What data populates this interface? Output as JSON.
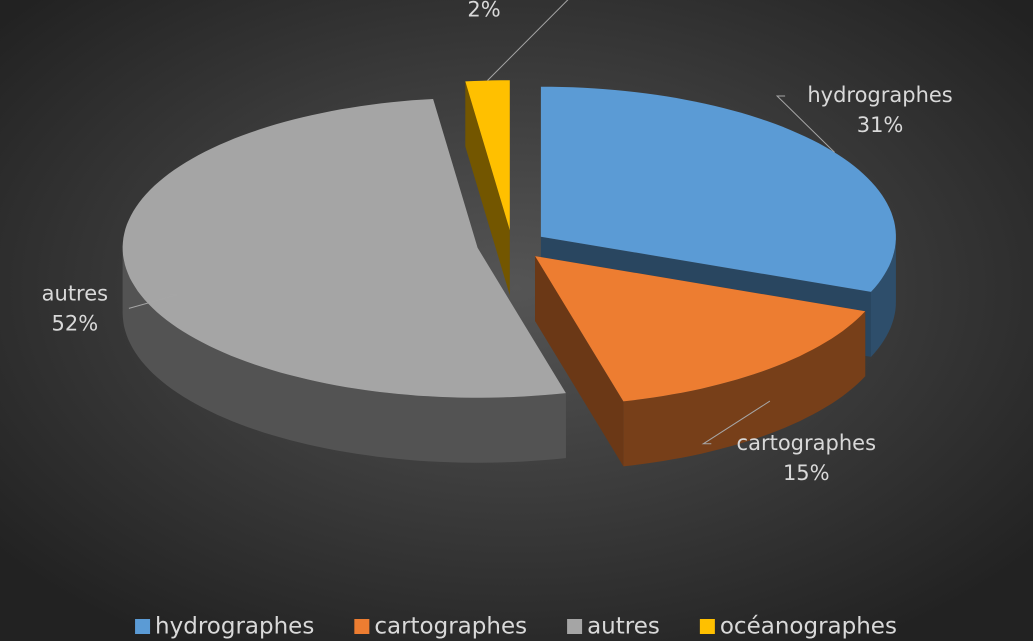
{
  "chart_data": {
    "type": "pie",
    "categories": [
      "hydrographes",
      "cartographes",
      "autres",
      "océanographes"
    ],
    "values": [
      31,
      15,
      52,
      2
    ],
    "value_labels": [
      "31%",
      "15%",
      "52%",
      "2%"
    ],
    "colors": [
      "#5b9bd5",
      "#ed7d31",
      "#a5a5a5",
      "#ffc000"
    ],
    "legend": "bottom"
  }
}
